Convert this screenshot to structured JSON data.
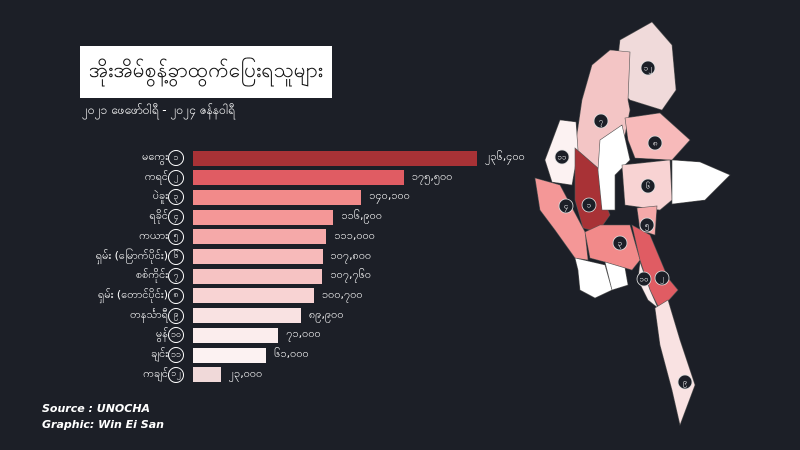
{
  "title": "အိုးအိမ်စွန့်ခွာထွက်ပြေးရသူများ",
  "subtitle": "၂၀၂၁ ဖေဖော်ဝါရီ - ၂၀၂၄ ဇန်နဝါရီ",
  "chart_data": {
    "type": "bar",
    "orientation": "horizontal",
    "title": "အိုးအိမ်စွန့်ခွာထွက်ပြေးရသူများ",
    "subtitle": "၂၀၂၁ ဖေဖော်ဝါရီ - ၂၀၂၄ ဇန်နဝါရီ",
    "categories": [
      "မကွေး",
      "ကရင်",
      "ပဲခူး",
      "ရခိုင်",
      "ကယား",
      "ရှမ်း (မြောက်ပိုင်း)",
      "စစ်ကိုင်း",
      "ရှမ်း (တောင်ပိုင်း)",
      "တနင်္သာရီ",
      "မွန်",
      "ချင်း",
      "ကချင်"
    ],
    "ranks": [
      "၁",
      "၂",
      "၃",
      "၄",
      "၅",
      "၆",
      "၇",
      "၈",
      "၉",
      "၁၀",
      "၁၁",
      "၁၂"
    ],
    "values": [
      236400,
      175500,
      140100,
      116900,
      111000,
      107800,
      107760,
      100700,
      89900,
      71000,
      61000,
      23000
    ],
    "value_labels": [
      "၂၃၆,၄၀၀",
      "၁၇၅,၅၀၀",
      "၁၄၀,၁၀၀",
      "၁၁၆,၉၀၀",
      "၁၁၁,၀၀၀",
      "၁၀၇,၈၀၀",
      "၁၀၇,၇၆၀",
      "၁၀၀,၇၀၀",
      "၈၉,၉၀၀",
      "၇၁,၀၀၀",
      "၆၁,၀၀၀",
      "၂၃,၀၀၀"
    ],
    "colors": [
      "#a83236",
      "#e05c63",
      "#f28a8a",
      "#f49797",
      "#f5a9a9",
      "#f7baba",
      "#f6c3c3",
      "#f8d3d3",
      "#f9e2e2",
      "#fbeded",
      "#fcf2f2",
      "#f0d9d9"
    ],
    "xlim": [
      0,
      236400
    ],
    "grid": false,
    "legend": "none"
  },
  "map": {
    "markers": [
      "၁၂",
      "၇",
      "၈",
      "၁၁",
      "၆",
      "၄",
      "၁",
      "၅",
      "၃",
      "၁၀",
      "၂",
      "၉"
    ]
  },
  "credits": {
    "source": "Source  :  UNOCHA",
    "graphic": "Graphic: Win Ei San"
  }
}
